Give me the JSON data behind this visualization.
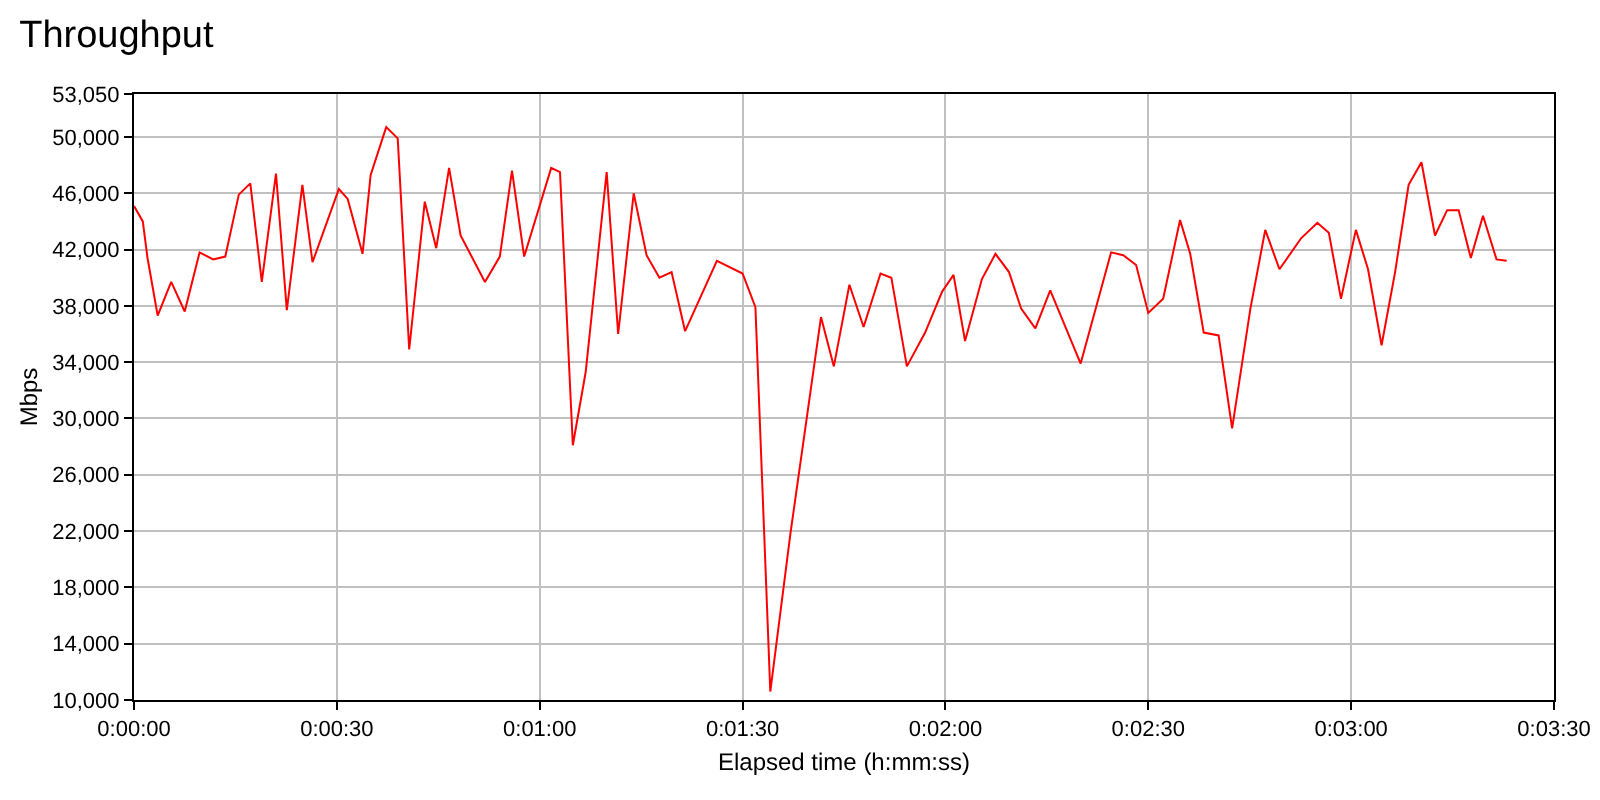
{
  "chart_data": {
    "type": "line",
    "title": "Throughput",
    "xlabel": "Elapsed time (h:mm:ss)",
    "ylabel": "Mbps",
    "x": [
      0,
      1.3,
      2,
      3.5,
      5.5,
      7.5,
      9.7,
      11.7,
      13.5,
      15.5,
      17.2,
      18.9,
      21,
      22.6,
      24.9,
      26.4,
      30.3,
      31.6,
      33.8,
      35,
      37.3,
      39,
      40.7,
      43,
      44.7,
      46.6,
      48.3,
      51.9,
      54.1,
      55.9,
      57.7,
      61.7,
      63,
      64.9,
      66.8,
      69.9,
      71.6,
      73.9,
      75.8,
      77.7,
      79.5,
      81.5,
      86.2,
      90,
      91.9,
      94.1,
      97.1,
      101.6,
      103.5,
      105.8,
      107.9,
      110.4,
      112,
      114.3,
      117,
      119.5,
      121.2,
      122.9,
      125.4,
      127.4,
      129.4,
      131.2,
      133.3,
      135.5,
      140,
      144.5,
      146.3,
      148.2,
      150,
      152.2,
      154.7,
      156.2,
      158.2,
      160.4,
      162.4,
      165.1,
      167.3,
      169.4,
      172.6,
      175,
      176.7,
      178.5,
      180.7,
      182.5,
      184.5,
      186.5,
      188.5,
      190.4,
      192.4,
      194.2,
      195.9,
      197.7,
      199.5,
      201.5,
      203
    ],
    "series": [
      {
        "color": "#ff0000",
        "values": [
          45100,
          44000,
          41400,
          37300,
          39700,
          37600,
          41800,
          41300,
          41500,
          45900,
          46700,
          39700,
          47400,
          37700,
          46600,
          41100,
          46300,
          45600,
          41700,
          47300,
          50700,
          49900,
          34900,
          45400,
          42100,
          47800,
          43000,
          39700,
          41500,
          47600,
          41500,
          47800,
          47500,
          28100,
          33300,
          47500,
          36000,
          46000,
          41600,
          40000,
          40400,
          36200,
          41200,
          40300,
          37900,
          10600,
          21900,
          37200,
          33700,
          39500,
          36500,
          40300,
          40000,
          33700,
          36100,
          39000,
          40200,
          35500,
          39900,
          41700,
          40400,
          37800,
          36400,
          39100,
          33900,
          41800,
          41600,
          40900,
          37500,
          38500,
          44100,
          41700,
          36100,
          35900,
          29300,
          37800,
          43400,
          40600,
          42800,
          43900,
          43200,
          38500,
          43400,
          40600,
          35200,
          40400,
          46600,
          48200,
          43000,
          44800,
          44800,
          41400,
          44400,
          41300,
          41200
        ]
      }
    ],
    "xlim": [
      0,
      210
    ],
    "xticks": [
      {
        "value": 0,
        "label": "0:00:00"
      },
      {
        "value": 30,
        "label": "0:00:30"
      },
      {
        "value": 60,
        "label": "0:01:00"
      },
      {
        "value": 90,
        "label": "0:01:30"
      },
      {
        "value": 120,
        "label": "0:02:00"
      },
      {
        "value": 150,
        "label": "0:02:30"
      },
      {
        "value": 180,
        "label": "0:03:00"
      },
      {
        "value": 210,
        "label": "0:03:30"
      }
    ],
    "ylim": [
      10000,
      53050
    ],
    "yticks": [
      {
        "value": 10000,
        "label": "10,000"
      },
      {
        "value": 14000,
        "label": "14,000"
      },
      {
        "value": 18000,
        "label": "18,000"
      },
      {
        "value": 22000,
        "label": "22,000"
      },
      {
        "value": 26000,
        "label": "26,000"
      },
      {
        "value": 30000,
        "label": "30,000"
      },
      {
        "value": 34000,
        "label": "34,000"
      },
      {
        "value": 38000,
        "label": "38,000"
      },
      {
        "value": 42000,
        "label": "42,000"
      },
      {
        "value": 46000,
        "label": "46,000"
      },
      {
        "value": 50000,
        "label": "50,000"
      },
      {
        "value": 53050,
        "label": "53,050"
      }
    ],
    "grid": true,
    "marker": "none",
    "line_style": "solid"
  }
}
